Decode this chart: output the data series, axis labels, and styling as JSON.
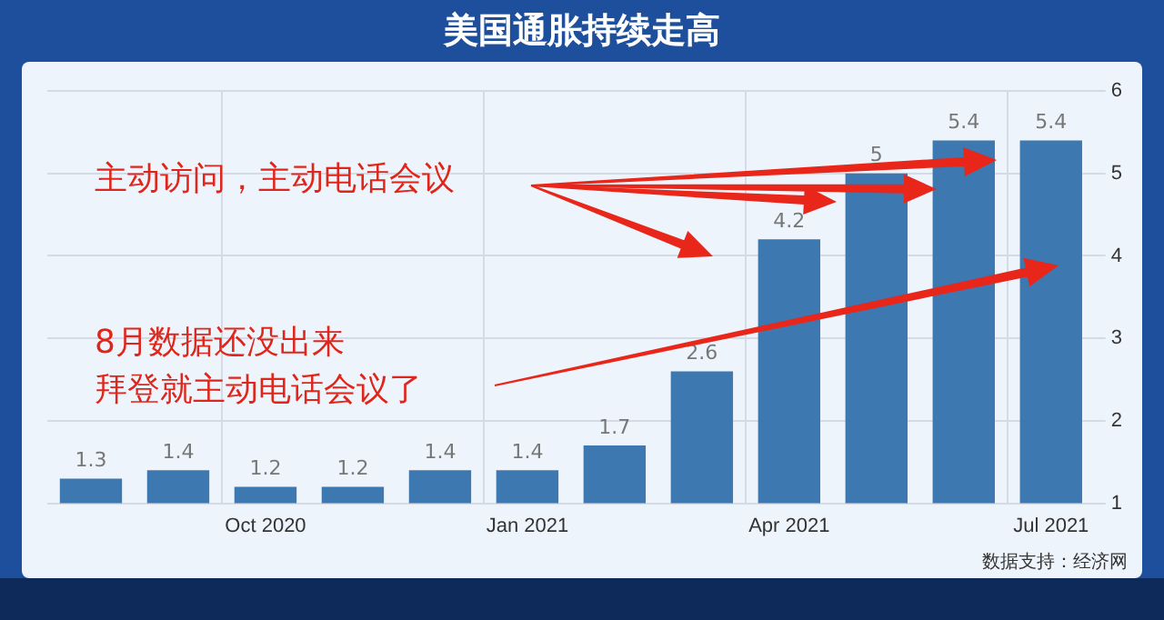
{
  "chart_data": {
    "type": "bar",
    "title": "美国通胀持续走高",
    "categories": [
      null,
      null,
      "Oct 2020",
      null,
      null,
      "Jan 2021",
      null,
      null,
      "Apr 2021",
      null,
      null,
      "Jul 2021"
    ],
    "values": [
      1.3,
      1.4,
      1.2,
      1.2,
      1.4,
      1.4,
      1.7,
      2.6,
      4.2,
      5,
      5.4,
      5.4
    ],
    "color": "#3d78b0",
    "ylim": [
      1,
      6
    ],
    "yticks": [
      1,
      2,
      3,
      4,
      5,
      6
    ],
    "grid": true,
    "data_labels": true,
    "annotations": [
      "主动访问，主动电话会议",
      "8月数据还没出来",
      "拜登就主动电话会议了",
      "数据支持：经济网"
    ]
  }
}
